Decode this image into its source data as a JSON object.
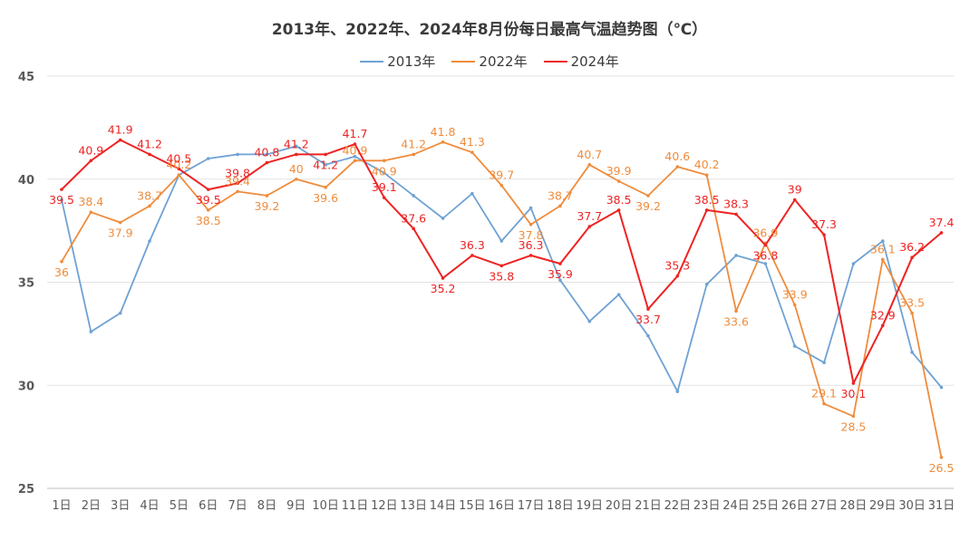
{
  "chart_data": {
    "type": "line",
    "title": "2013年、2022年、2024年8月份每日最高气温趋势图（℃）",
    "categories": [
      "1日",
      "2日",
      "3日",
      "4日",
      "5日",
      "6日",
      "7日",
      "8日",
      "9日",
      "10日",
      "11日",
      "12日",
      "13日",
      "14日",
      "15日",
      "16日",
      "17日",
      "18日",
      "19日",
      "20日",
      "21日",
      "22日",
      "23日",
      "24日",
      "25日",
      "26日",
      "27日",
      "28日",
      "29日",
      "30日",
      "31日"
    ],
    "ylim": [
      25,
      45
    ],
    "yticks": [
      "25",
      "30",
      "35",
      "40",
      "45"
    ],
    "grid": true,
    "legend_position": "top",
    "series": [
      {
        "name": "2013年",
        "color": "#6fa2d4",
        "labels_shown": false,
        "values": [
          39.0,
          32.6,
          33.5,
          37.0,
          40.2,
          41.0,
          41.2,
          41.2,
          41.6,
          40.7,
          41.1,
          40.3,
          39.2,
          38.1,
          39.3,
          37.0,
          38.6,
          35.1,
          33.1,
          34.4,
          32.4,
          29.7,
          34.9,
          36.3,
          35.9,
          31.9,
          31.1,
          35.9,
          37.0,
          31.6,
          29.9
        ]
      },
      {
        "name": "2022年",
        "color": "#ef8c3c",
        "labels_shown": true,
        "values": [
          36,
          38.4,
          37.9,
          38.7,
          40.2,
          38.5,
          39.4,
          39.2,
          40,
          39.6,
          40.9,
          40.9,
          41.2,
          41.8,
          41.3,
          39.7,
          37.8,
          38.7,
          40.7,
          39.9,
          39.2,
          40.6,
          40.2,
          33.6,
          36.9,
          33.9,
          29.1,
          28.5,
          36.1,
          33.5,
          26.5
        ]
      },
      {
        "name": "2024年",
        "color": "#ee2323",
        "labels_shown": true,
        "values": [
          39.5,
          40.9,
          41.9,
          41.2,
          40.5,
          39.5,
          39.8,
          40.8,
          41.2,
          41.2,
          41.7,
          39.1,
          37.6,
          35.2,
          36.3,
          35.8,
          36.3,
          35.9,
          37.7,
          38.5,
          33.7,
          35.3,
          38.5,
          38.3,
          36.8,
          39,
          37.3,
          30.1,
          32.9,
          36.2,
          37.4
        ]
      }
    ]
  }
}
